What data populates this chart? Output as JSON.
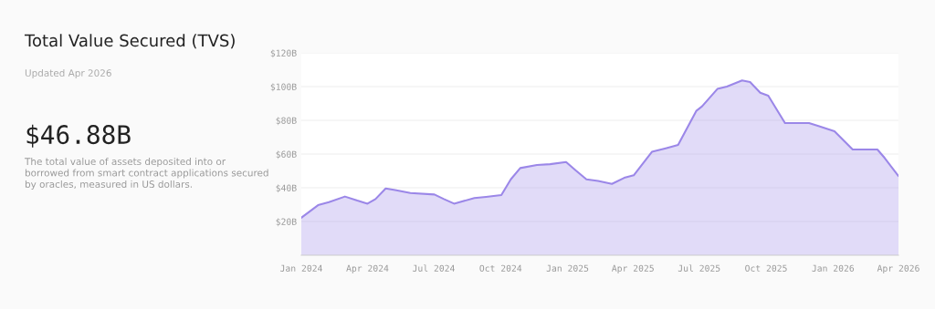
{
  "chart_data": {
    "type": "area",
    "title": "Total Value Secured (TVS)",
    "subtitle": "Updated Apr 2026",
    "annotations": [
      "$46.88B",
      "The total value of assets deposited into or borrowed from smart contract applications secured by oracles, measured in US dollars."
    ],
    "x": [
      "2024-01-01",
      "2024-01-24",
      "2024-02-08",
      "2024-03-01",
      "2024-03-18",
      "2024-04-01",
      "2024-04-12",
      "2024-04-26",
      "2024-05-09",
      "2024-05-30",
      "2024-07-02",
      "2024-07-15",
      "2024-07-29",
      "2024-08-26",
      "2024-09-11",
      "2024-10-02",
      "2024-10-15",
      "2024-10-28",
      "2024-11-20",
      "2024-12-08",
      "2024-12-30",
      "2025-01-12",
      "2025-01-27",
      "2025-02-12",
      "2025-03-03",
      "2025-03-20",
      "2025-04-02",
      "2025-04-27",
      "2025-05-16",
      "2025-06-02",
      "2025-06-27",
      "2025-07-05",
      "2025-07-26",
      "2025-08-08",
      "2025-08-29",
      "2025-09-09",
      "2025-09-23",
      "2025-10-04",
      "2025-10-27",
      "2025-11-29",
      "2025-12-12",
      "2026-01-03",
      "2026-01-28",
      "2026-03-03",
      "2026-03-13",
      "2026-04-01"
    ],
    "series": [
      {
        "color": "#9b87e8",
        "values": [
          22.2,
          29.7,
          31.5,
          34.8,
          32.4,
          30.6,
          33.3,
          39.6,
          38.7,
          36.9,
          36,
          33.3,
          30.6,
          33.9,
          34.6,
          35.7,
          45,
          51.7,
          53.5,
          54,
          55.3,
          50.4,
          45,
          44.1,
          42.3,
          45.9,
          47.4,
          61.3,
          63.4,
          65.4,
          85.6,
          88.3,
          98.6,
          100,
          103.6,
          102.7,
          96.4,
          94.6,
          78.4,
          78.4,
          76.6,
          73.5,
          62.7,
          62.7,
          57.7,
          46.9
        ]
      }
    ],
    "xlim": [
      "2024-01-01",
      "2026-04-01"
    ],
    "xticks": [
      {
        "value": "2024-01-01",
        "label": "Jan 2024"
      },
      {
        "value": "2024-04-01",
        "label": "Apr 2024"
      },
      {
        "value": "2024-07-01",
        "label": "Jul 2024"
      },
      {
        "value": "2024-10-01",
        "label": "Oct 2024"
      },
      {
        "value": "2025-01-01",
        "label": "Jan 2025"
      },
      {
        "value": "2025-04-01",
        "label": "Apr 2025"
      },
      {
        "value": "2025-07-01",
        "label": "Jul 2025"
      },
      {
        "value": "2025-10-01",
        "label": "Oct 2025"
      },
      {
        "value": "2026-01-01",
        "label": "Jan 2026"
      },
      {
        "value": "2026-04-01",
        "label": "Apr 2026"
      }
    ],
    "ylim": [
      0,
      120
    ],
    "yticks": [
      {
        "value": 20,
        "label": "$20B"
      },
      {
        "value": 40,
        "label": "$40B"
      },
      {
        "value": 60,
        "label": "$60B"
      },
      {
        "value": 80,
        "label": "$80B"
      },
      {
        "value": 100,
        "label": "$100B"
      },
      {
        "value": 120,
        "label": "$120B"
      }
    ],
    "grid": "y",
    "legend": false
  }
}
